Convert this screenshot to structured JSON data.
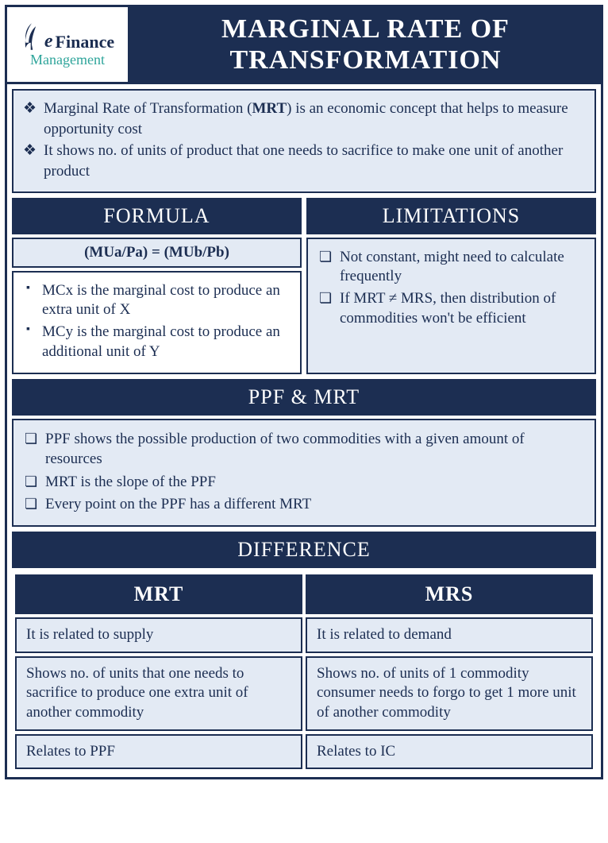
{
  "colors": {
    "dark": "#1c2e52",
    "light": "#e3eaf4",
    "teal": "#2fa59b",
    "border": "#1c2e52",
    "white": "#ffffff"
  },
  "logo": {
    "line1": "Finance",
    "line2": "Management",
    "feather_color": "#1c2e52",
    "e_letter": "e"
  },
  "title": "MARGINAL RATE OF TRANSFORMATION",
  "intro": {
    "items": [
      "Marginal Rate of Transformation (<b>MRT</b>) is an economic concept that helps to measure opportunity cost",
      "It shows no. of units of product that one needs to sacrifice to make one unit of another product"
    ]
  },
  "formula": {
    "header": "FORMULA",
    "equation": "(MUa/Pa) = (MUb/Pb)",
    "notes": [
      "MCx is the marginal cost to produce an extra unit of X",
      "MCy is the marginal cost to produce an additional unit of Y"
    ]
  },
  "limitations": {
    "header": "LIMITATIONS",
    "items": [
      "Not constant, might need to calculate frequently",
      "If MRT ≠ MRS, then distribution of commodities won't be efficient"
    ]
  },
  "ppf": {
    "header": "PPF & MRT",
    "items": [
      "PPF shows the possible production of two commodities with a given amount of resources",
      "MRT is the slope of the PPF",
      "Every point on the PPF has a different MRT"
    ]
  },
  "difference": {
    "header": "DIFFERENCE",
    "cols": [
      "MRT",
      "MRS"
    ],
    "rows": [
      [
        "It is related to supply",
        "It is related to demand"
      ],
      [
        "Shows no. of units that one needs to sacrifice to produce one extra unit of another commodity",
        "Shows no. of units of 1 commodity consumer needs to forgo to get 1 more unit of another commodity"
      ],
      [
        "Relates to PPF",
        "Relates to IC"
      ]
    ]
  },
  "typography": {
    "title_fontsize": 34,
    "header_fontsize": 26,
    "body_fontsize": 19,
    "font_family": "Garamond / serif"
  }
}
